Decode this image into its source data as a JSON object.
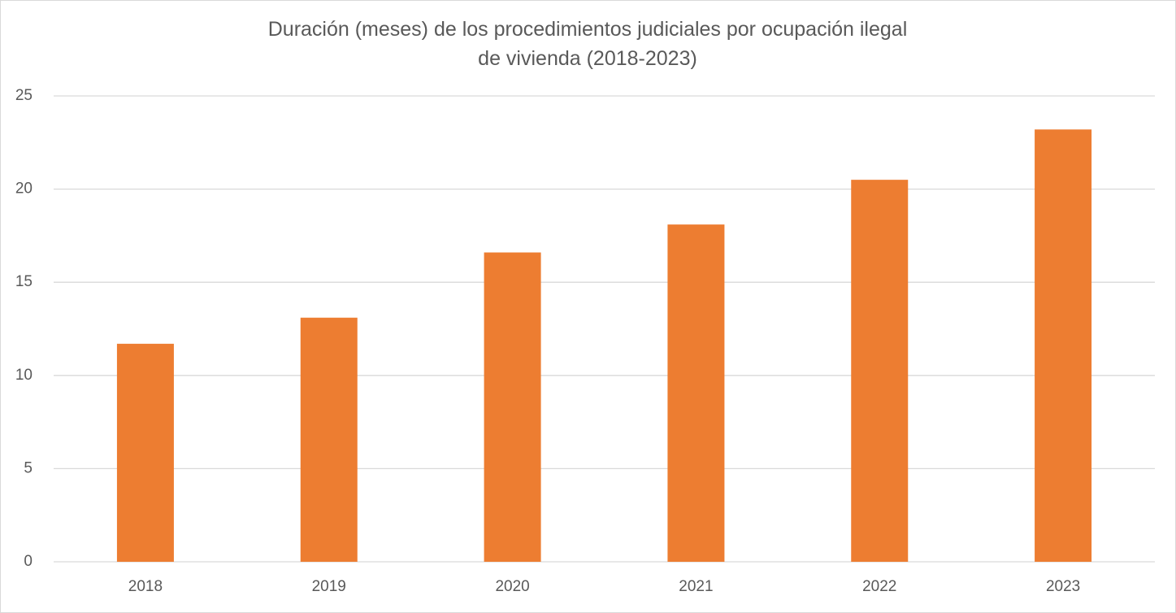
{
  "chart_data": {
    "type": "bar",
    "title": "Duración (meses) de los procedimientos judiciales por ocupación ilegal de vivienda (2018-2023)",
    "categories": [
      "2018",
      "2019",
      "2020",
      "2021",
      "2022",
      "2023"
    ],
    "values": [
      11.7,
      13.1,
      16.6,
      18.1,
      20.5,
      23.2
    ],
    "color": "#ed7d31",
    "ylim": [
      0,
      25
    ],
    "yticks": [
      0,
      5,
      10,
      15,
      20,
      25
    ],
    "grid": true
  }
}
